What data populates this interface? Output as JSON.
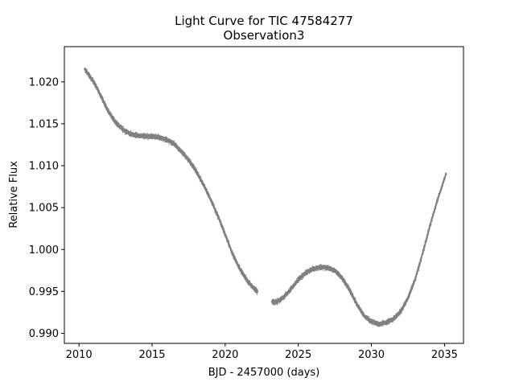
{
  "chart_data": {
    "type": "scatter",
    "title": "Light Curve for TIC 47584277",
    "subtitle": "Observation3",
    "xlabel": "BJD - 2457000 (days)",
    "ylabel": "Relative Flux",
    "xlim": [
      2009,
      2036.3
    ],
    "ylim": [
      0.9888,
      1.0242
    ],
    "xticks": [
      2010,
      2015,
      2020,
      2025,
      2030,
      2035
    ],
    "xtick_labels": [
      "2010",
      "2015",
      "2020",
      "2025",
      "2030",
      "2035"
    ],
    "yticks": [
      0.99,
      0.995,
      1.0,
      1.005,
      1.01,
      1.015,
      1.02
    ],
    "ytick_labels": [
      "0.990",
      "0.995",
      "1.000",
      "1.005",
      "1.010",
      "1.015",
      "1.020"
    ],
    "grid": false,
    "marker_color": "#808080",
    "series": [
      {
        "segments": [
          {
            "x": [
              2010.4,
              2011.0,
              2011.5,
              2012.0,
              2012.5,
              2013.0,
              2013.5,
              2014.0,
              2014.5,
              2015.0,
              2015.5,
              2016.0,
              2016.5,
              2017.0,
              2017.5,
              2018.0,
              2018.5,
              2019.0,
              2019.5,
              2020.0,
              2020.5,
              2021.0,
              2021.5,
              2022.0,
              2022.2
            ],
            "y": [
              1.0215,
              1.02,
              1.0183,
              1.0165,
              1.0152,
              1.0143,
              1.0138,
              1.0136,
              1.0135,
              1.0135,
              1.0134,
              1.0131,
              1.0126,
              1.0117,
              1.0107,
              1.0094,
              1.0078,
              1.006,
              1.004,
              1.0018,
              0.9995,
              0.9977,
              0.9963,
              0.9953,
              0.995
            ]
          },
          {
            "x": [
              2023.2,
              2023.5,
              2024.0,
              2024.5,
              2025.0,
              2025.5,
              2026.0,
              2026.5,
              2027.0,
              2027.5,
              2028.0,
              2028.5,
              2029.0,
              2029.5,
              2030.0,
              2030.5,
              2031.0,
              2031.5,
              2032.0,
              2032.5,
              2033.0,
              2033.5,
              2034.0,
              2034.5,
              2035.1
            ],
            "y": [
              0.9938,
              0.9937,
              0.9943,
              0.9953,
              0.9964,
              0.9972,
              0.9977,
              0.9979,
              0.9978,
              0.9975,
              0.9966,
              0.9952,
              0.9935,
              0.9921,
              0.9914,
              0.9911,
              0.9913,
              0.9917,
              0.9926,
              0.9942,
              0.9965,
              0.9995,
              1.0028,
              1.0058,
              1.009
            ]
          }
        ]
      }
    ]
  }
}
